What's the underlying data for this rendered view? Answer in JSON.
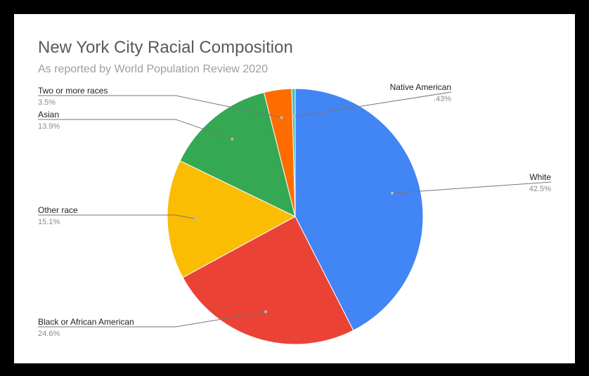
{
  "chart_data": {
    "type": "pie",
    "title": "New York City Racial Composition",
    "subtitle": "As reported by World Population Review 2020",
    "slices": [
      {
        "label": "White",
        "value": 42.5,
        "value_label": "42.5%",
        "color": "#4285F4"
      },
      {
        "label": "Black or African American",
        "value": 24.6,
        "value_label": "24.6%",
        "color": "#EA4335"
      },
      {
        "label": "Other race",
        "value": 15.1,
        "value_label": "15.1%",
        "color": "#FBBC04"
      },
      {
        "label": "Asian",
        "value": 13.9,
        "value_label": "13.9%",
        "color": "#34A853"
      },
      {
        "label": "Two or more races",
        "value": 3.5,
        "value_label": "3.5%",
        "color": "#FF6D01"
      },
      {
        "label": "Native American",
        "value": 0.43,
        "value_label": ".43%",
        "color": "#46BDC6"
      }
    ],
    "start_angle": "12 o'clock",
    "direction": "clockwise",
    "legend": "labeled leader lines"
  }
}
